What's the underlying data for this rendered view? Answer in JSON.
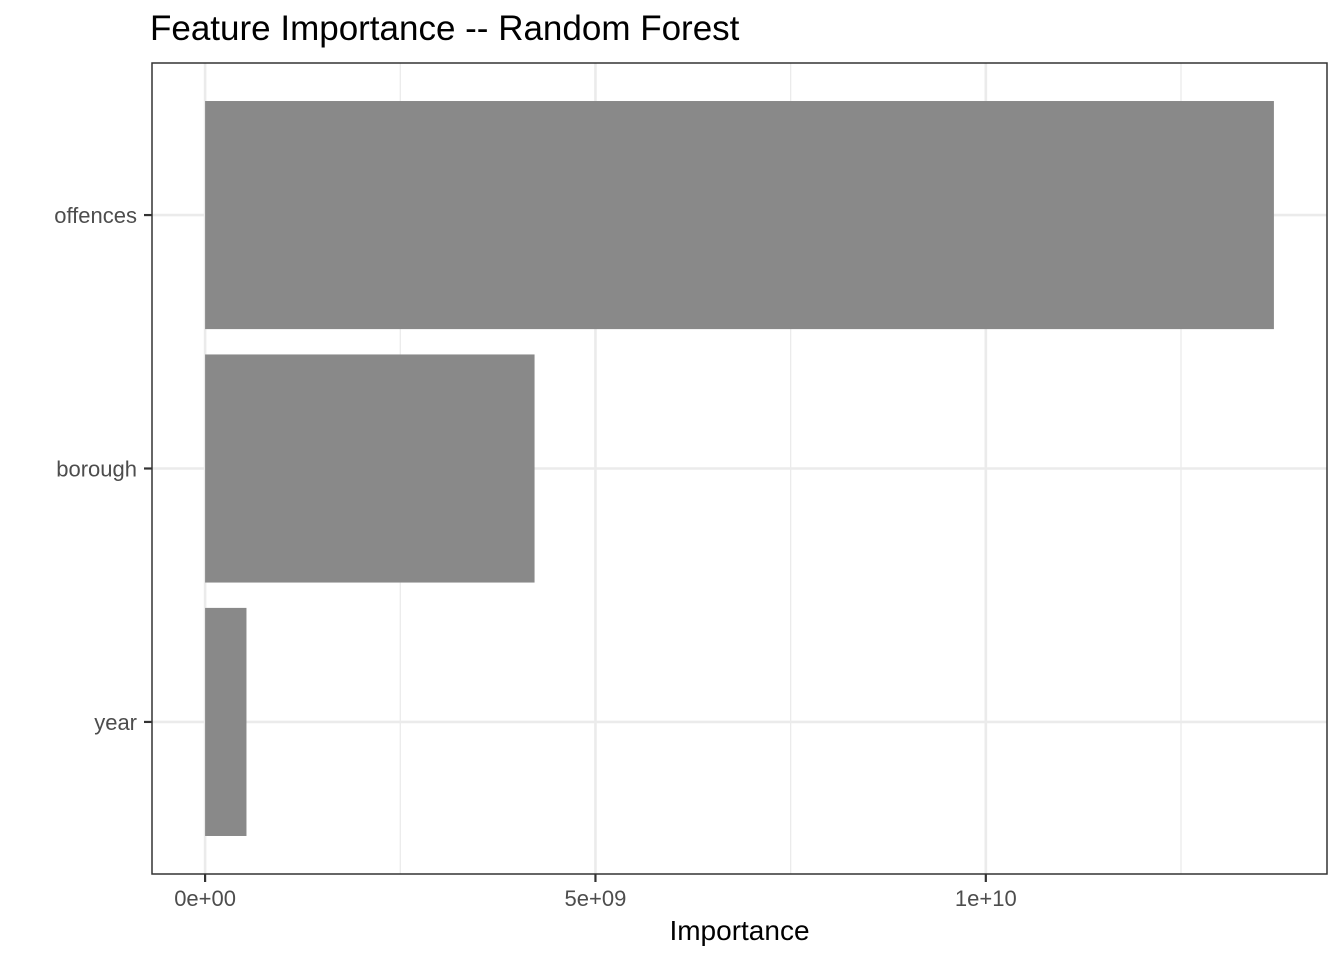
{
  "chart_data": {
    "type": "bar",
    "orientation": "horizontal",
    "title": "Feature Importance -- Random Forest",
    "xlabel": "Importance",
    "ylabel": "",
    "categories": [
      "offences",
      "borough",
      "year"
    ],
    "values": [
      13690000000,
      4220000000,
      530000000
    ],
    "xlim": [
      -680000000,
      14370000000
    ],
    "x_ticks": [
      {
        "value": 0,
        "label": "0e+00"
      },
      {
        "value": 5000000000,
        "label": "5e+09"
      },
      {
        "value": 10000000000,
        "label": "1e+10"
      }
    ],
    "x_minor_ticks": [
      2500000000,
      7500000000,
      12500000000
    ],
    "grid": true,
    "legend": "none",
    "colors": {
      "bar": "#898989",
      "grid": "#ebebeb",
      "panel_border": "#333333",
      "tick_label": "#4d4d4d",
      "title": "#000000"
    }
  }
}
